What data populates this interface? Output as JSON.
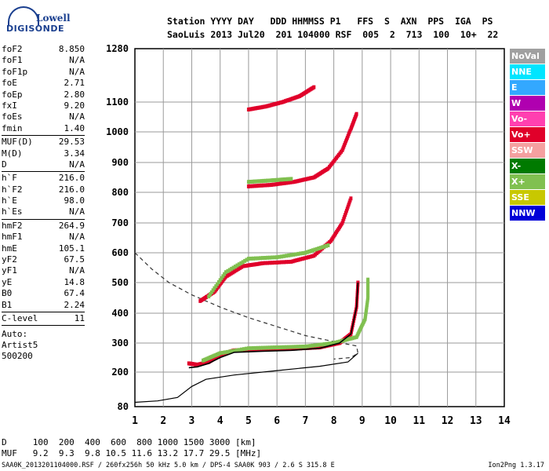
{
  "logo": {
    "brand_top": "Lowell",
    "brand_bottom": "DIGISONDE"
  },
  "header": {
    "line1": "Station YYYY DAY   DDD HHMMSS P1   FFS  S  AXN  PPS  IGA  PS",
    "line2": "SaoLuis 2013 Jul20  201 104000 RSF  005  2  713  100  10+  22"
  },
  "params": {
    "group1": [
      {
        "k": "foF2",
        "v": "8.850"
      },
      {
        "k": "foF1",
        "v": "N/A"
      },
      {
        "k": "foF1p",
        "v": "N/A"
      },
      {
        "k": "foE",
        "v": "2.71"
      },
      {
        "k": "foEp",
        "v": "2.80"
      },
      {
        "k": "fxI",
        "v": "9.20"
      },
      {
        "k": "foEs",
        "v": "N/A"
      },
      {
        "k": "fmin",
        "v": "1.40"
      }
    ],
    "group2": [
      {
        "k": "MUF(D)",
        "v": "29.53"
      },
      {
        "k": "M(D)",
        "v": "3.34"
      },
      {
        "k": "D",
        "v": "N/A"
      }
    ],
    "group3": [
      {
        "k": "h`F",
        "v": "216.0"
      },
      {
        "k": "h`F2",
        "v": "216.0"
      },
      {
        "k": "h`E",
        "v": "98.0"
      },
      {
        "k": "h`Es",
        "v": "N/A"
      }
    ],
    "group4": [
      {
        "k": "hmF2",
        "v": "264.9"
      },
      {
        "k": "hmF1",
        "v": "N/A"
      },
      {
        "k": "hmE",
        "v": "105.1"
      },
      {
        "k": "yF2",
        "v": "67.5"
      },
      {
        "k": "yF1",
        "v": "N/A"
      },
      {
        "k": "yE",
        "v": "14.8"
      },
      {
        "k": "B0",
        "v": "67.4"
      },
      {
        "k": "B1",
        "v": "2.24"
      }
    ],
    "group5": [
      {
        "k": "C-level",
        "v": "11"
      }
    ],
    "auto": [
      "Auto:",
      "Artist5",
      "500200"
    ]
  },
  "legend": [
    {
      "label": "NoVal",
      "color": "#a0a0a0"
    },
    {
      "label": "NNE",
      "color": "#00e5ff"
    },
    {
      "label": "E",
      "color": "#33a8ff"
    },
    {
      "label": "W",
      "color": "#b000b0"
    },
    {
      "label": "Vo-",
      "color": "#ff40b0"
    },
    {
      "label": "Vo+",
      "color": "#e0002a"
    },
    {
      "label": "SSW",
      "color": "#f5a0a0"
    },
    {
      "label": "X-",
      "color": "#007a00"
    },
    {
      "label": "X+",
      "color": "#80c050"
    },
    {
      "label": "SSE",
      "color": "#c8c800"
    },
    {
      "label": "NNW",
      "color": "#0000d8"
    }
  ],
  "footer": {
    "dline": "D     100  200  400  600  800 1000 1500 3000 [km]",
    "mufline": "MUF   9.2  9.3  9.8 10.5 11.6 13.2 17.7 29.5 [MHz]",
    "source": "SAA0K_2013201104000.RSF / 260fx256h 50 kHz 5.0 km / DPS-4 SAA0K 903 / 2.6 S 315.8 E",
    "version": "Ion2Png 1.3.17"
  },
  "chart_data": {
    "type": "scatter",
    "x_ticks": [
      "1",
      "2",
      "3",
      "4",
      "5",
      "6",
      "7",
      "8",
      "9",
      "10",
      "11",
      "12",
      "13",
      "14"
    ],
    "y_ticks": [
      "80",
      "200",
      "300",
      "400",
      "500",
      "600",
      "700",
      "800",
      "900",
      "1000",
      "1100",
      "1280"
    ],
    "xlim": [
      1,
      14
    ],
    "ylim": [
      80,
      1280
    ],
    "series": [
      {
        "name": "Vo+",
        "color": "#e0002a",
        "points": [
          [
            2.9,
            230
          ],
          [
            3.2,
            225
          ],
          [
            3.6,
            235
          ],
          [
            4.0,
            260
          ],
          [
            4.5,
            275
          ],
          [
            5.5,
            278
          ],
          [
            6.5,
            280
          ],
          [
            7.5,
            285
          ],
          [
            8.2,
            300
          ],
          [
            8.6,
            330
          ],
          [
            8.8,
            420
          ],
          [
            8.85,
            500
          ]
        ]
      },
      {
        "name": "X+",
        "color": "#80c050",
        "points": [
          [
            3.4,
            240
          ],
          [
            4.0,
            265
          ],
          [
            5.0,
            282
          ],
          [
            6.0,
            285
          ],
          [
            7.0,
            288
          ],
          [
            8.0,
            300
          ],
          [
            8.8,
            320
          ],
          [
            9.1,
            380
          ],
          [
            9.2,
            450
          ],
          [
            9.2,
            510
          ]
        ]
      },
      {
        "name": "Vo+ 2nd",
        "color": "#e0002a",
        "points": [
          [
            3.3,
            440
          ],
          [
            3.8,
            470
          ],
          [
            4.2,
            520
          ],
          [
            4.8,
            555
          ],
          [
            5.5,
            565
          ],
          [
            6.5,
            570
          ],
          [
            7.3,
            590
          ],
          [
            7.9,
            640
          ],
          [
            8.3,
            700
          ],
          [
            8.6,
            780
          ]
        ]
      },
      {
        "name": "X+ 2nd",
        "color": "#80c050",
        "points": [
          [
            3.6,
            455
          ],
          [
            4.2,
            535
          ],
          [
            5.0,
            580
          ],
          [
            6.0,
            585
          ],
          [
            7.0,
            600
          ],
          [
            7.8,
            625
          ]
        ]
      },
      {
        "name": "Vo+ 3rd",
        "color": "#e0002a",
        "points": [
          [
            5.0,
            820
          ],
          [
            5.8,
            825
          ],
          [
            6.6,
            835
          ],
          [
            7.3,
            850
          ],
          [
            7.8,
            880
          ],
          [
            8.3,
            940
          ],
          [
            8.6,
            1010
          ],
          [
            8.8,
            1060
          ]
        ]
      },
      {
        "name": "X+ 3rd",
        "color": "#80c050",
        "points": [
          [
            5.0,
            835
          ],
          [
            5.8,
            840
          ],
          [
            6.5,
            845
          ]
        ]
      },
      {
        "name": "Vo+ 4th",
        "color": "#e0002a",
        "points": [
          [
            5.0,
            1075
          ],
          [
            5.6,
            1085
          ],
          [
            6.2,
            1100
          ],
          [
            6.8,
            1120
          ],
          [
            7.3,
            1150
          ]
        ]
      }
    ],
    "trace_virtual": [
      [
        2.9,
        215
      ],
      [
        3.2,
        218
      ],
      [
        3.6,
        230
      ],
      [
        4.0,
        250
      ],
      [
        4.5,
        268
      ],
      [
        5.5,
        272
      ],
      [
        6.5,
        275
      ],
      [
        7.5,
        282
      ],
      [
        8.2,
        300
      ],
      [
        8.6,
        330
      ],
      [
        8.8,
        420
      ],
      [
        8.85,
        500
      ]
    ],
    "profile": [
      [
        1.0,
        95
      ],
      [
        1.8,
        100
      ],
      [
        2.5,
        112
      ],
      [
        3.0,
        150
      ],
      [
        3.5,
        175
      ],
      [
        4.5,
        190
      ],
      [
        6.0,
        205
      ],
      [
        7.5,
        220
      ],
      [
        8.5,
        235
      ],
      [
        8.85,
        265
      ]
    ],
    "dashed_muf": [
      [
        1.0,
        600
      ],
      [
        1.6,
        545
      ],
      [
        2.2,
        500
      ],
      [
        3.0,
        460
      ],
      [
        4.0,
        420
      ],
      [
        5.0,
        385
      ],
      [
        6.0,
        355
      ],
      [
        7.0,
        325
      ],
      [
        8.0,
        305
      ],
      [
        8.8,
        290
      ],
      [
        8.85,
        265
      ],
      [
        8.6,
        250
      ],
      [
        8.0,
        245
      ]
    ]
  }
}
